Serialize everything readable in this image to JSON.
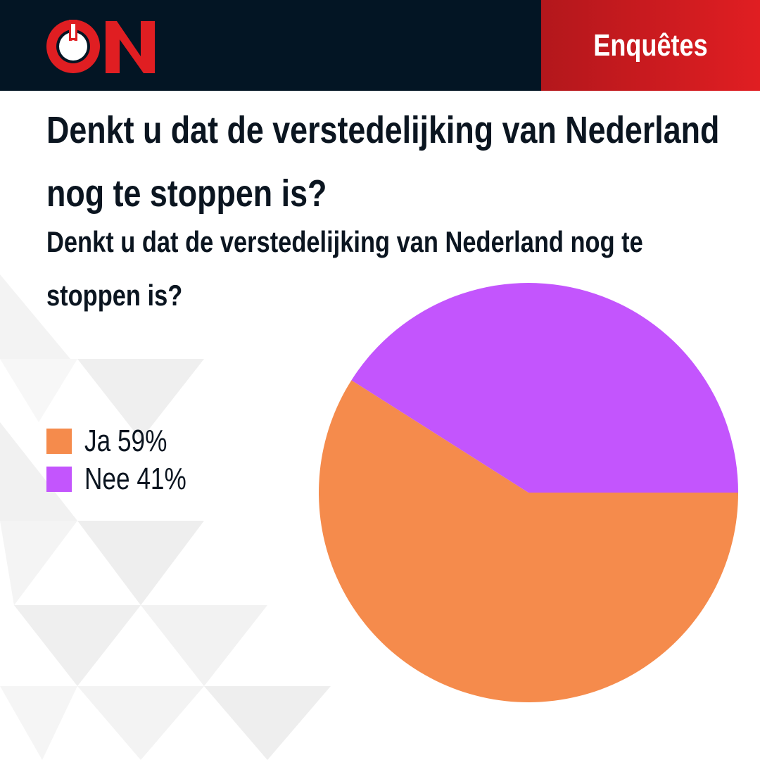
{
  "header": {
    "logo_text": "ON",
    "section_label": "Enquêtes"
  },
  "colors": {
    "header_bg": "#031524",
    "accent_red": "#e01e22",
    "ja": "#f58b4c",
    "nee": "#c355fd"
  },
  "chart_data": {
    "type": "pie",
    "title": "Denkt u dat de verstedelijking van Nederland nog te stoppen is?",
    "subtitle": "Denkt u dat de verstedelijking van Nederland nog te stoppen is?",
    "categories": [
      "Ja",
      "Nee"
    ],
    "values": [
      59,
      41
    ],
    "legend": [
      {
        "label": "Ja 59%",
        "color": "#f58b4c"
      },
      {
        "label": "Nee 41%",
        "color": "#c355fd"
      }
    ],
    "legend_position": "left"
  }
}
